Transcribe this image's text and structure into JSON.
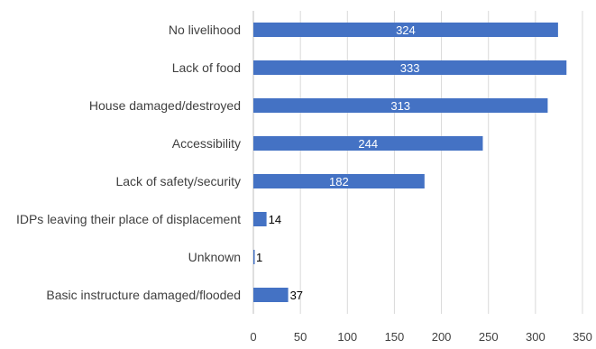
{
  "chart_data": {
    "type": "bar",
    "orientation": "horizontal",
    "categories": [
      "No livelihood",
      "Lack of food",
      "House damaged/destroyed",
      "Accessibility",
      "Lack of safety/security",
      "IDPs leaving their place of displacement",
      "Unknown",
      "Basic instructure damaged/flooded"
    ],
    "values": [
      324,
      333,
      313,
      244,
      182,
      14,
      1,
      37
    ],
    "xlim": [
      0,
      350
    ],
    "xticks": [
      "0",
      "50",
      "100",
      "150",
      "200",
      "250",
      "300",
      "350"
    ],
    "grid": true,
    "data_labels": true,
    "bar_color": "#4472c4"
  }
}
